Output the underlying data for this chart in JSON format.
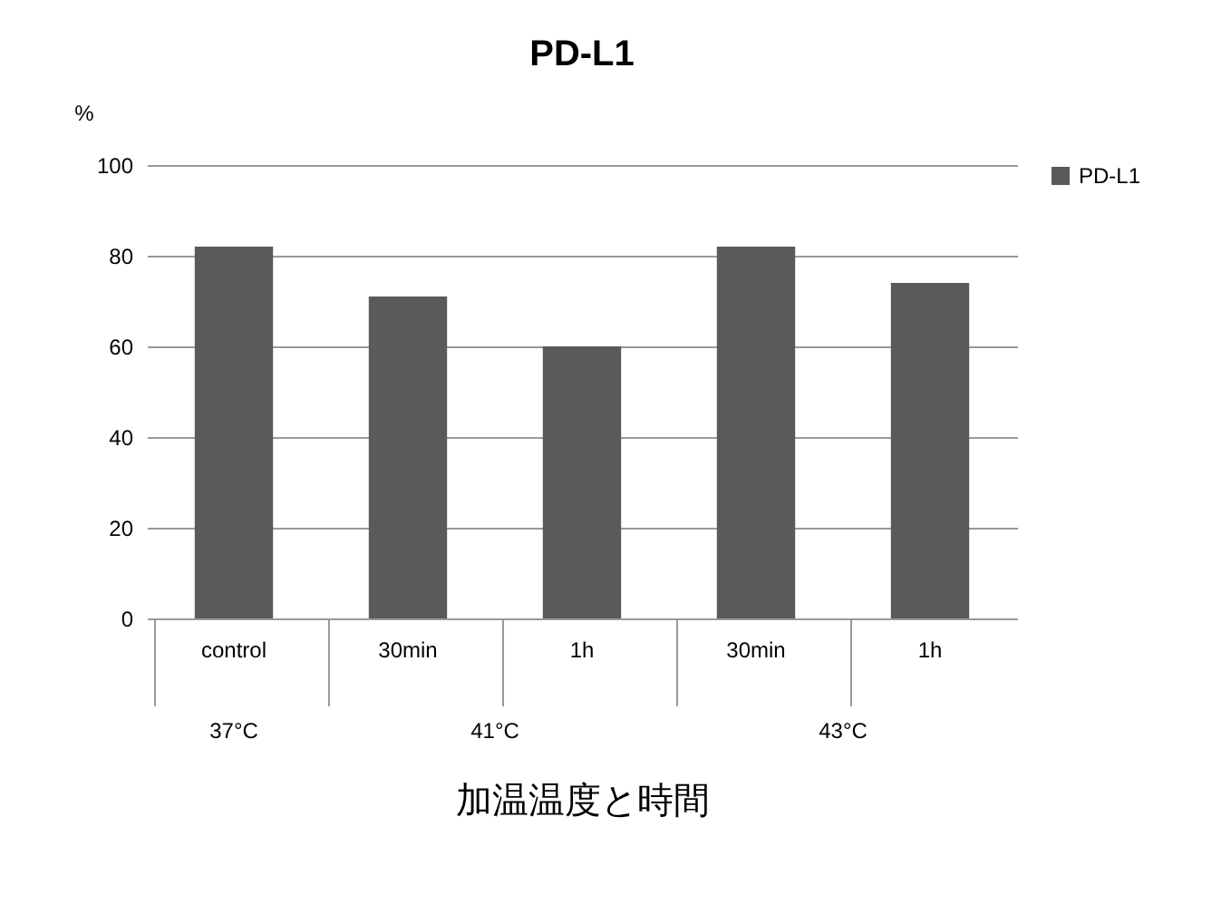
{
  "chart_data": {
    "type": "bar",
    "title": "PD-L1",
    "ylabel": "%",
    "xlabel": "加温温度と時間",
    "categories": [
      "control",
      "30min",
      "1h",
      "30min",
      "1h"
    ],
    "series": [
      {
        "name": "PD-L1",
        "color": "#5a5a5a",
        "values": [
          82,
          71,
          60,
          82,
          74
        ]
      }
    ],
    "annotations": [
      "37°C",
      "41°C",
      "43°C"
    ],
    "ylim": [
      0,
      100
    ],
    "yticks": [
      0,
      20,
      40,
      60,
      80,
      100
    ],
    "grid": "y",
    "legend": "right"
  }
}
